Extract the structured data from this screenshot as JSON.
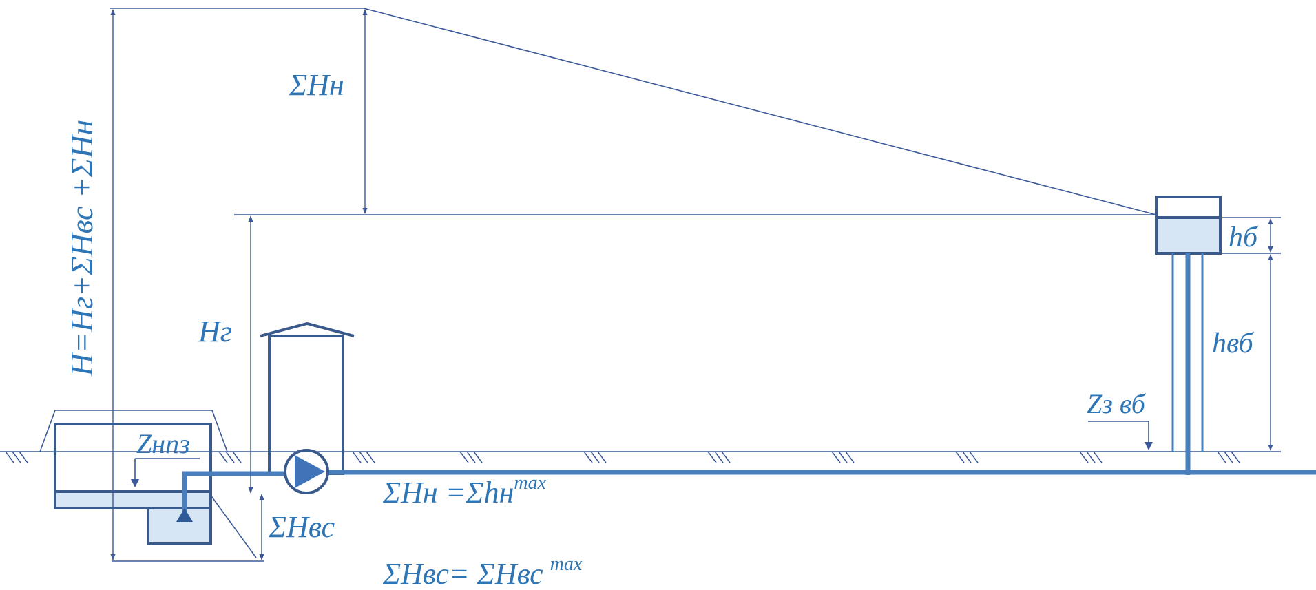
{
  "labels": {
    "total_head": "H=Hг+ΣHвс +ΣHн",
    "sum_hn": "ΣHн",
    "hg": "Hг",
    "z_npz": "Zнпз",
    "sum_hvs": "ΣHвс",
    "hb": "hб",
    "hvb": "hвб",
    "z_vb": "Zз вб",
    "eq_hn_base": "ΣHн =Σhн",
    "eq_hn_sup": "max",
    "eq_hvs_base": "ΣHвс= ΣHвс",
    "eq_hvs_sup": "max"
  },
  "colors": {
    "line": "#3B5998",
    "structure": "#3A5A8C",
    "pipe": "#4A7FBD",
    "water": "#D6E6F5",
    "text": "#2E75B6"
  }
}
